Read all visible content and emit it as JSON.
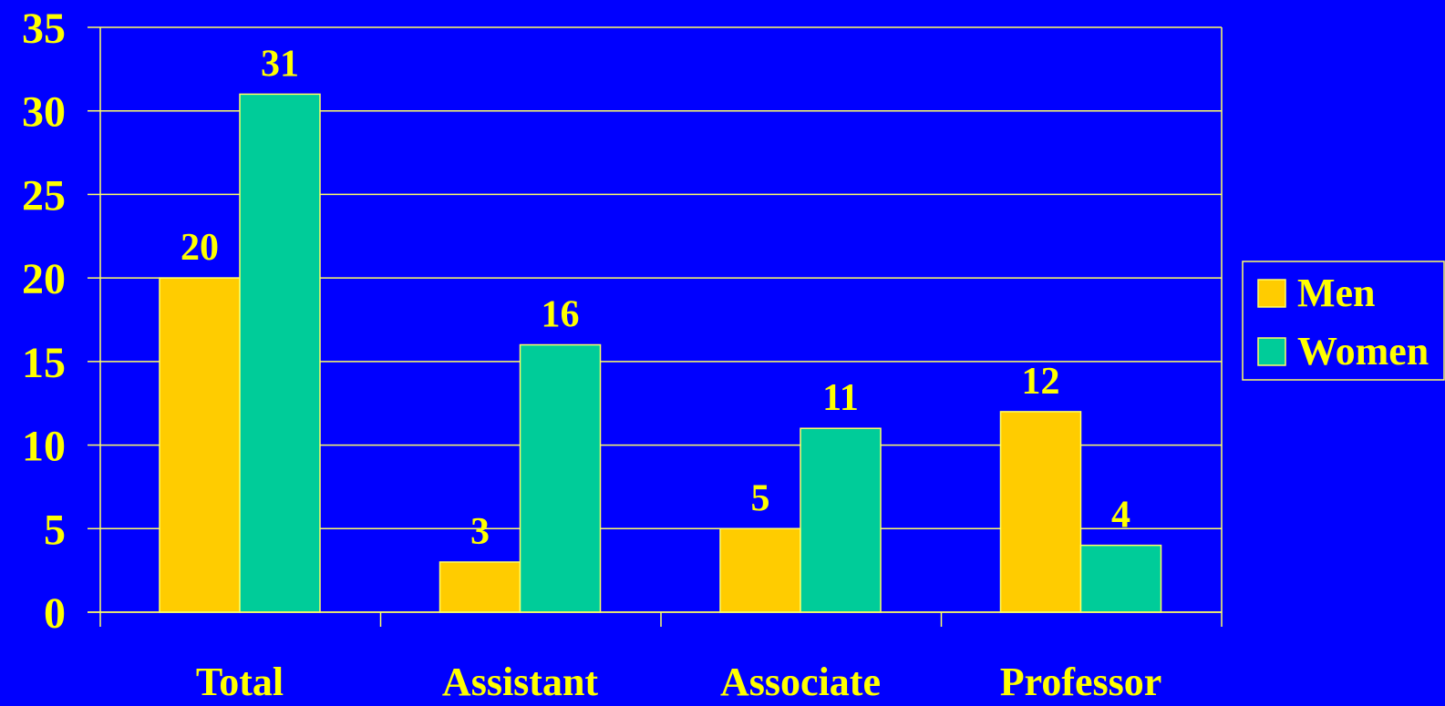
{
  "chart_data": {
    "type": "bar",
    "categories": [
      "Total",
      "Assistant",
      "Associate",
      "Professor"
    ],
    "series": [
      {
        "name": "Men",
        "values": [
          20,
          3,
          5,
          12
        ],
        "color": "#FFCC00"
      },
      {
        "name": "Women",
        "values": [
          31,
          16,
          11,
          4
        ],
        "color": "#00CC99"
      }
    ],
    "ylim": [
      0,
      35
    ],
    "yticks": [
      0,
      5,
      10,
      15,
      20,
      25,
      30,
      35
    ],
    "grid": true,
    "legend_position": "right",
    "colors": {
      "background": "#0000FF",
      "text": "#FFFF00",
      "axis": "#FFFF66"
    }
  }
}
